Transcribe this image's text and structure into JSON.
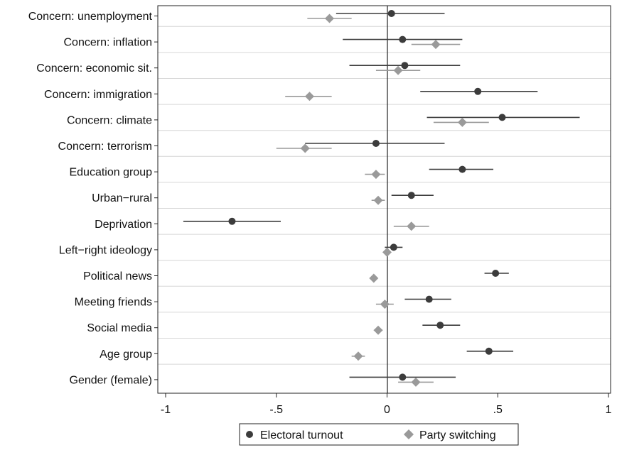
{
  "chart_data": {
    "type": "scatter",
    "subtype": "coefficient-plot",
    "title": "",
    "xlabel": "",
    "ylabel": "",
    "xlim": [
      -1,
      1
    ],
    "xticks": [
      -1,
      -0.5,
      0,
      0.5,
      1
    ],
    "xtick_labels": [
      "-1",
      "-.5",
      "0",
      ".5",
      "1"
    ],
    "grid": "horizontal",
    "legend_position": "bottom",
    "categories": [
      "Concern: unemployment",
      "Concern: inflation",
      "Concern: economic sit.",
      "Concern: immigration",
      "Concern: climate",
      "Concern: terrorism",
      "Education group",
      "Urban−rural",
      "Deprivation",
      "Left−right ideology",
      "Political news",
      "Meeting friends",
      "Social media",
      "Age group",
      "Gender (female)"
    ],
    "series": [
      {
        "name": "Electoral turnout",
        "marker": "circle",
        "color": "#3c3c3c",
        "values": [
          0.02,
          0.07,
          0.08,
          0.41,
          0.52,
          -0.05,
          0.34,
          0.11,
          -0.7,
          0.03,
          0.49,
          0.19,
          0.24,
          0.46,
          0.07
        ],
        "ci_low": [
          -0.23,
          -0.2,
          -0.17,
          0.15,
          0.18,
          -0.37,
          0.19,
          0.02,
          -0.92,
          -0.01,
          0.44,
          0.08,
          0.16,
          0.36,
          -0.17
        ],
        "ci_high": [
          0.26,
          0.34,
          0.33,
          0.68,
          0.87,
          0.26,
          0.48,
          0.21,
          -0.48,
          0.07,
          0.55,
          0.29,
          0.33,
          0.57,
          0.31
        ]
      },
      {
        "name": "Party switching",
        "marker": "diamond",
        "color": "#9a9a9a",
        "values": [
          -0.26,
          0.22,
          0.05,
          -0.35,
          0.34,
          -0.37,
          -0.05,
          -0.04,
          0.11,
          0.0,
          -0.06,
          -0.01,
          -0.04,
          -0.13,
          0.13
        ],
        "ci_low": [
          -0.36,
          0.11,
          -0.05,
          -0.46,
          0.21,
          -0.5,
          -0.1,
          -0.07,
          0.03,
          -0.01,
          -0.07,
          -0.05,
          -0.06,
          -0.16,
          0.05
        ],
        "ci_high": [
          -0.16,
          0.33,
          0.15,
          -0.25,
          0.46,
          -0.25,
          -0.01,
          -0.01,
          0.19,
          0.01,
          -0.05,
          0.03,
          -0.02,
          -0.1,
          0.21
        ]
      }
    ]
  }
}
